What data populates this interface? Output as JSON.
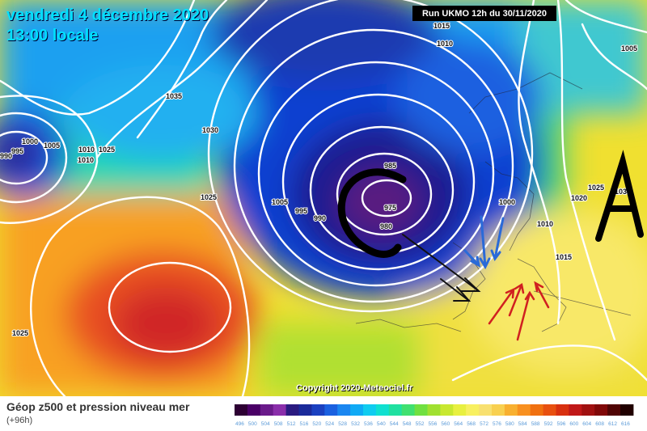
{
  "header": {
    "date": "vendredi 4 décembre 2020",
    "time": "13:00 locale",
    "run": "Run UKMO 12h du 30/11/2020"
  },
  "copyright": "Copyright 2020-Meteociel.fr",
  "legend": {
    "title": "Géop z500 et pression niveau mer",
    "subtitle": "(+96h)",
    "values": [
      "496",
      "500",
      "504",
      "508",
      "512",
      "516",
      "520",
      "524",
      "528",
      "532",
      "536",
      "540",
      "544",
      "548",
      "552",
      "556",
      "560",
      "564",
      "568",
      "572",
      "576",
      "580",
      "584",
      "588",
      "592",
      "596",
      "600",
      "604",
      "608",
      "612",
      "616"
    ],
    "colors": [
      "#2d0033",
      "#4a0066",
      "#6a1a8a",
      "#8a2eaa",
      "#2a1a80",
      "#1a2a9a",
      "#1a40c0",
      "#1a60e0",
      "#1a86f0",
      "#10aaf5",
      "#10ccf0",
      "#10e0d0",
      "#20e0a0",
      "#40e070",
      "#70e040",
      "#a0e030",
      "#c8e830",
      "#e8f040",
      "#f8f060",
      "#f8e070",
      "#f8d050",
      "#f8b030",
      "#f89020",
      "#f07010",
      "#e85010",
      "#d83010",
      "#c01818",
      "#a01010",
      "#800808",
      "#500404",
      "#200000"
    ]
  },
  "isobar_labels": [
    "1015",
    "1010",
    "1005",
    "1035",
    "1030",
    "1000",
    "995",
    "990",
    "1005",
    "1010",
    "1025",
    "1025",
    "985",
    "975",
    "980",
    "995",
    "990",
    "1005",
    "1000",
    "1010",
    "1015",
    "1020",
    "1025",
    "1030",
    "1025"
  ],
  "annotations": {
    "low_letter": "C",
    "high_letter": "A"
  }
}
